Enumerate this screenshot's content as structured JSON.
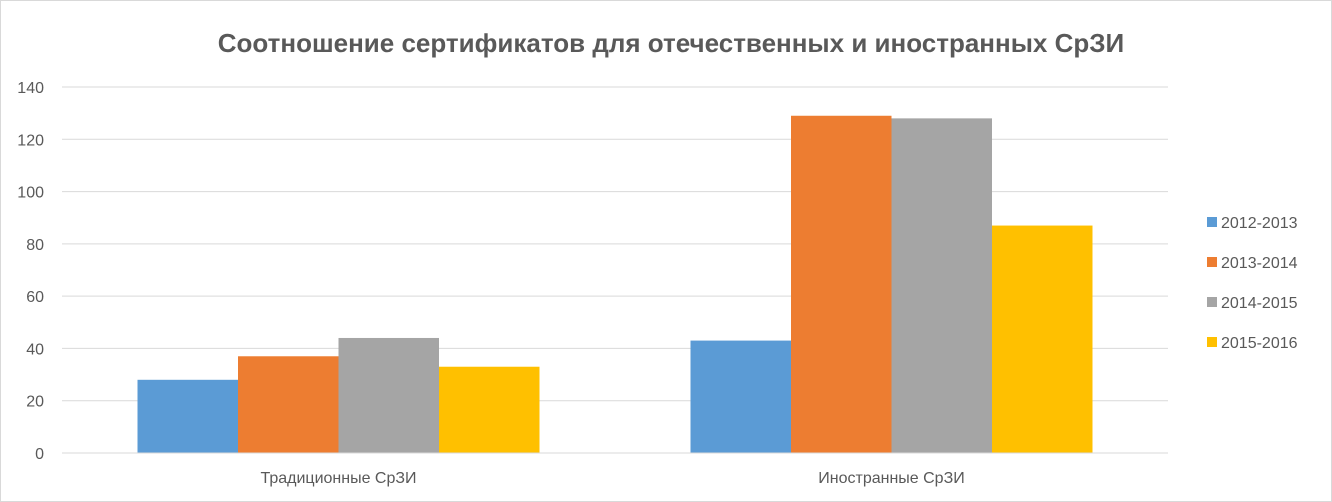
{
  "chart_data": {
    "type": "bar",
    "title": "Соотношение сертификатов для отечественных и иностранных СрЗИ",
    "xlabel": "",
    "ylabel": "",
    "categories": [
      "Традиционные СрЗИ",
      "Иностранные СрЗИ"
    ],
    "series": [
      {
        "name": "2012-2013",
        "values": [
          28,
          43
        ],
        "color": "#5b9bd5"
      },
      {
        "name": "2013-2014",
        "values": [
          37,
          129
        ],
        "color": "#ed7d31"
      },
      {
        "name": "2014-2015",
        "values": [
          44,
          128
        ],
        "color": "#a5a5a5"
      },
      {
        "name": "2015-2016",
        "values": [
          33,
          87
        ],
        "color": "#ffc000"
      }
    ],
    "ylim": [
      0,
      140
    ],
    "yticks": [
      0,
      20,
      40,
      60,
      80,
      100,
      120,
      140
    ],
    "grid": true,
    "legend_position": "right"
  }
}
